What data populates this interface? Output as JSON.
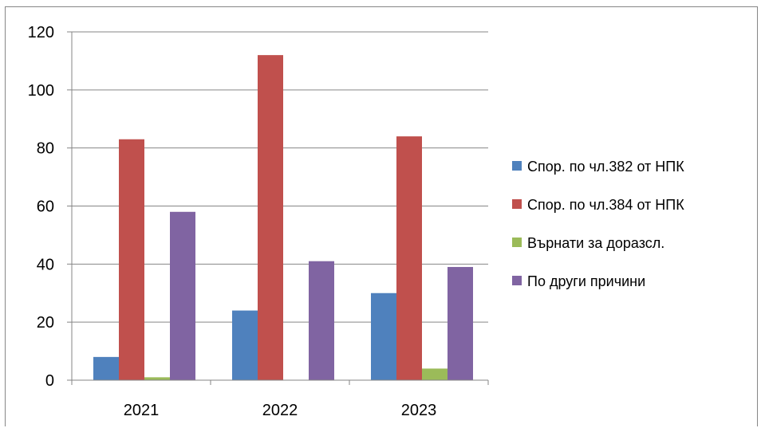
{
  "chart_data": {
    "type": "bar",
    "categories": [
      "2021",
      "2022",
      "2023"
    ],
    "series": [
      {
        "name": "Спор. по чл.382 от НПК",
        "values": [
          8,
          24,
          30
        ],
        "color": "#4F81BD"
      },
      {
        "name": "Спор. по чл.384 от НПК",
        "values": [
          83,
          112,
          84
        ],
        "color": "#C0504D"
      },
      {
        "name": "Върнати за доразсл.",
        "values": [
          1,
          0,
          4
        ],
        "color": "#9BBB59"
      },
      {
        "name": "По други причини",
        "values": [
          58,
          41,
          39
        ],
        "color": "#8064A2"
      }
    ],
    "ylim": [
      0,
      120
    ],
    "yticks": [
      0,
      20,
      40,
      60,
      80,
      100,
      120
    ],
    "grid": true,
    "legend": "right"
  }
}
